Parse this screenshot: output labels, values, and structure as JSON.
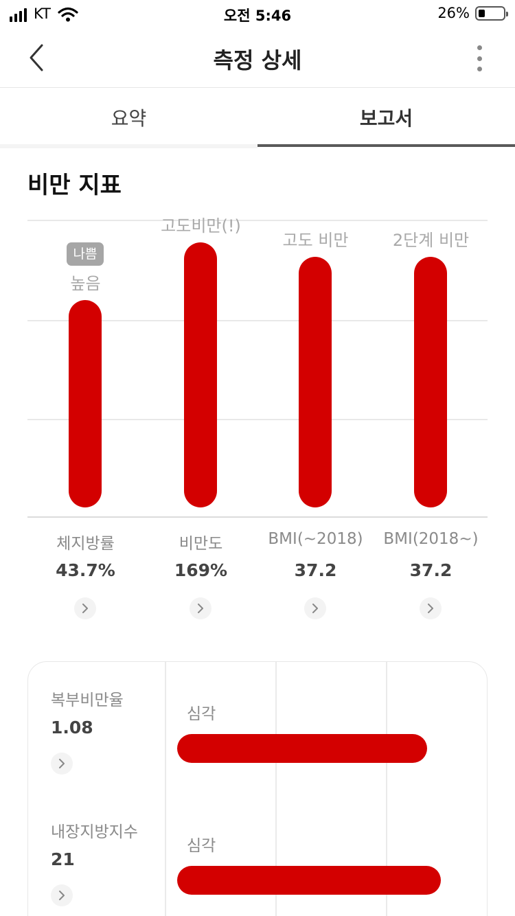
{
  "status_bar": {
    "carrier": "KT",
    "time": "오전 5:46",
    "battery_percent": "26%",
    "battery_level": 0.26
  },
  "nav": {
    "title": "측정 상세",
    "back_icon": "chevron-left-icon",
    "more_icon": "more-vertical-icon"
  },
  "tabs": [
    {
      "label": "요약",
      "active": false
    },
    {
      "label": "보고서",
      "active": true
    }
  ],
  "section": {
    "title": "비만 지표"
  },
  "colors": {
    "bar": "#d30000",
    "badge": "#a6a6a6",
    "tab_underline": "#5a5a5a"
  },
  "metrics": [
    {
      "name": "체지방률",
      "value": "43.7%",
      "level": "높음",
      "badge": "나쁨",
      "bar_level": 0.72
    },
    {
      "name": "비만도",
      "value": "169%",
      "level": "고도비만(!)",
      "bar_level": 0.92
    },
    {
      "name": "BMI(~2018)",
      "value": "37.2",
      "level": "고도 비만",
      "bar_level": 0.87
    },
    {
      "name": "BMI(2018~)",
      "value": "37.2",
      "level": "2단계 비만",
      "bar_level": 0.87
    }
  ],
  "card_rows": [
    {
      "name": "복부비만율",
      "value": "1.08",
      "level": "심각",
      "bar_level": 0.92
    },
    {
      "name": "내장지방지수",
      "value": "21",
      "level": "심각",
      "bar_level": 0.97
    }
  ]
}
